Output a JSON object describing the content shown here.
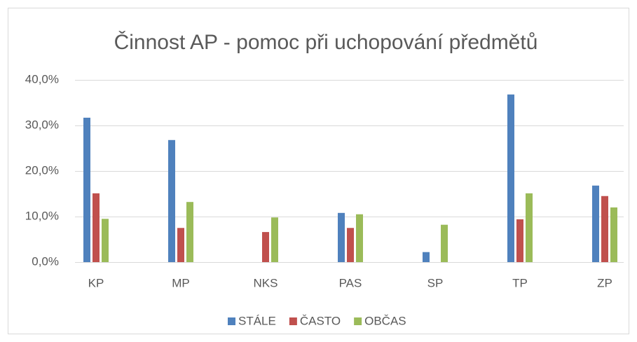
{
  "chart_data": {
    "type": "bar",
    "title": "Činnost AP - pomoc při uchopování předmětů",
    "categories": [
      "KP",
      "MP",
      "NKS",
      "PAS",
      "SP",
      "TP",
      "ZP"
    ],
    "series": [
      {
        "name": "STÁLE",
        "color": "#4f81bd",
        "values": [
          31.7,
          26.8,
          0,
          10.8,
          2.2,
          36.8,
          16.8
        ]
      },
      {
        "name": "ČASTO",
        "color": "#c0504d",
        "values": [
          15.1,
          7.5,
          6.6,
          7.5,
          0,
          9.4,
          14.5
        ]
      },
      {
        "name": "OBČAS",
        "color": "#9bbb59",
        "values": [
          9.5,
          13.2,
          9.8,
          10.5,
          8.2,
          15.1,
          12.0
        ]
      }
    ],
    "ylim": [
      0,
      40
    ],
    "yticks": [
      {
        "value": 0,
        "label": "0,0%"
      },
      {
        "value": 10,
        "label": "10,0%"
      },
      {
        "value": 20,
        "label": "20,0%"
      },
      {
        "value": 30,
        "label": "30,0%"
      },
      {
        "value": 40,
        "label": "40,0%"
      }
    ],
    "grid": true,
    "legend": "bottom"
  }
}
